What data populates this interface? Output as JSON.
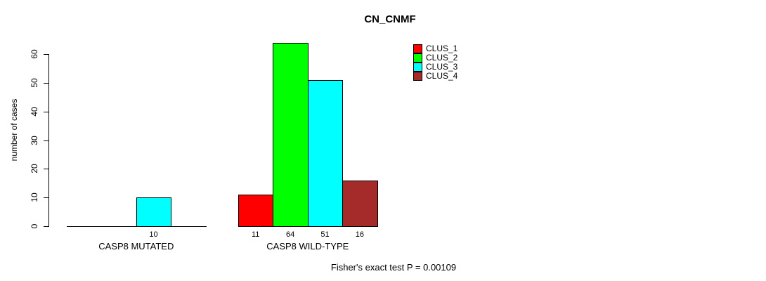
{
  "page": {
    "background": "#FFFFFF"
  },
  "chart_data": {
    "type": "bar",
    "title": "CN_CNMF",
    "ylabel": "number of cases",
    "xlabel": "",
    "categories": [
      "CASP8 MUTATED",
      "CASP8 WILD-TYPE"
    ],
    "series": [
      {
        "name": "CLUS_1",
        "color": "#FF0000",
        "values": [
          0,
          11
        ]
      },
      {
        "name": "CLUS_2",
        "color": "#00FF00",
        "values": [
          0,
          64
        ]
      },
      {
        "name": "CLUS_3",
        "color": "#00FFFF",
        "values": [
          10,
          51
        ]
      },
      {
        "name": "CLUS_4",
        "color": "#A52A2A",
        "values": [
          0,
          16
        ]
      }
    ],
    "yticks": [
      0,
      10,
      20,
      30,
      40,
      50,
      60
    ],
    "ylim": [
      0,
      64
    ],
    "grid": false,
    "bar_value_labels": {
      "show_zero": false
    },
    "legend": {
      "position": "top-right",
      "entries": [
        "CLUS_1",
        "CLUS_2",
        "CLUS_3",
        "CLUS_4"
      ]
    },
    "annotation": "Fisher's exact test P = 0.00109"
  }
}
